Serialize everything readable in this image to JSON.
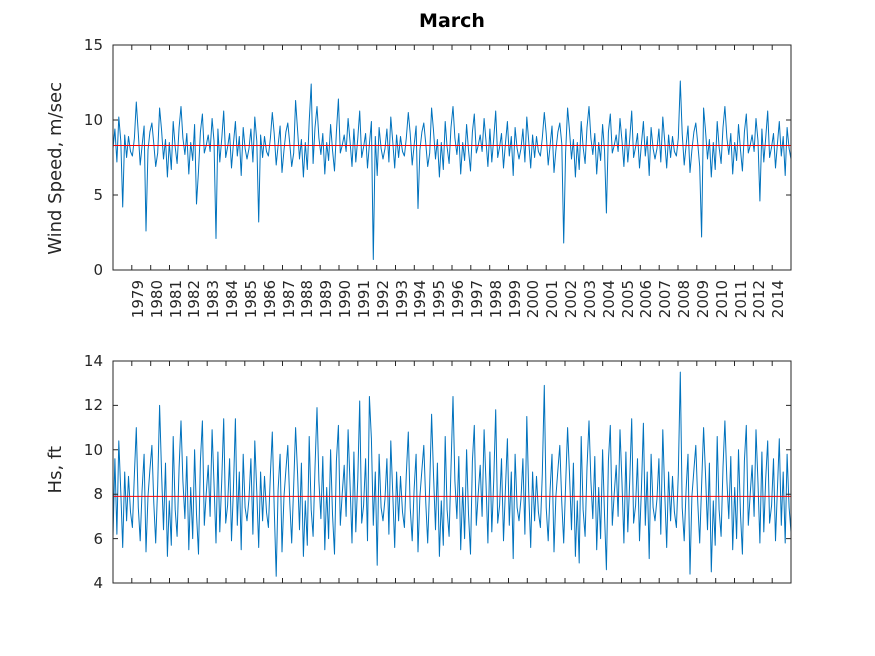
{
  "title": "March",
  "colors": {
    "series": "#0072BD",
    "mean_line": "#FF0000",
    "axis": "#262626",
    "background": "#FFFFFF",
    "title_text": "#000000"
  },
  "chart_data": [
    {
      "type": "line",
      "title": "March",
      "ylabel": "Wind Speed, m/sec",
      "ylim": [
        0,
        15
      ],
      "yticks": [
        0,
        5,
        10,
        15
      ],
      "grid": false,
      "legend": "none",
      "x_tick_labels": [
        "1979",
        "1980",
        "1981",
        "1982",
        "1983",
        "1984",
        "1985",
        "1986",
        "1987",
        "1988",
        "1989",
        "1990",
        "1991",
        "1992",
        "1993",
        "1994",
        "1995",
        "1996",
        "1997",
        "1998",
        "1999",
        "2000",
        "2001",
        "2002",
        "2003",
        "2004",
        "2005",
        "2006",
        "2007",
        "2008",
        "2009",
        "2010",
        "2011",
        "2012",
        "2014"
      ],
      "mean_line_value": 8.3,
      "values": [
        8.1,
        9.4,
        7.2,
        10.2,
        8.6,
        4.2,
        9.0,
        7.5,
        8.9,
        7.9,
        7.6,
        8.8,
        11.2,
        9.1,
        7.0,
        8.3,
        9.6,
        2.6,
        8.0,
        9.2,
        9.8,
        8.4,
        6.9,
        7.8,
        10.8,
        9.3,
        7.4,
        8.7,
        6.2,
        8.5,
        6.7,
        9.9,
        8.2,
        7.1,
        9.5,
        10.9,
        8.8,
        7.7,
        9.1,
        6.4,
        8.5,
        7.3,
        9.7,
        4.4,
        6.6,
        9.2,
        10.4,
        7.8,
        8.3,
        9.0,
        7.9,
        10.1,
        8.6,
        2.1,
        9.4,
        7.2,
        8.8,
        10.6,
        7.5,
        8.2,
        9.1,
        6.8,
        8.4,
        9.9,
        7.6,
        8.9,
        6.3,
        9.5,
        8.1,
        7.4,
        8.1,
        9.4,
        7.2,
        10.2,
        8.6,
        3.2,
        9.0,
        7.5,
        8.9,
        7.9,
        7.6,
        8.8,
        10.5,
        9.1,
        7.0,
        8.3,
        9.6,
        6.5,
        8.0,
        9.2,
        9.8,
        8.4,
        6.9,
        7.8,
        11.3,
        9.3,
        7.4,
        8.7,
        6.2,
        8.5,
        6.7,
        9.9,
        12.4,
        7.1,
        9.5,
        10.9,
        8.8,
        7.7,
        9.1,
        6.4,
        8.5,
        7.3,
        9.7,
        8.0,
        6.6,
        9.2,
        11.4,
        7.8,
        8.3,
        9.0,
        7.9,
        10.1,
        8.6,
        6.9,
        9.4,
        7.2,
        8.8,
        10.6,
        7.5,
        8.2,
        9.1,
        6.8,
        8.4,
        9.9,
        0.7,
        8.9,
        6.3,
        9.5,
        8.1,
        7.4,
        8.1,
        9.4,
        7.2,
        10.2,
        8.6,
        6.8,
        9.0,
        7.5,
        8.9,
        7.9,
        7.6,
        8.8,
        10.5,
        9.1,
        7.0,
        8.3,
        9.6,
        4.1,
        8.0,
        9.2,
        9.8,
        8.4,
        6.9,
        7.8,
        10.8,
        9.3,
        7.4,
        8.7,
        6.2,
        8.5,
        6.7,
        9.9,
        8.2,
        7.1,
        9.5,
        10.9,
        8.8,
        7.7,
        9.1,
        6.4,
        8.5,
        7.3,
        9.7,
        8.0,
        6.6,
        9.2,
        10.4,
        7.8,
        8.3,
        9.0,
        7.9,
        10.1,
        8.6,
        6.9,
        9.4,
        7.2,
        8.8,
        10.6,
        7.5,
        8.2,
        9.1,
        6.8,
        8.4,
        9.9,
        7.6,
        8.9,
        6.3,
        9.5,
        8.1,
        7.4,
        8.1,
        9.4,
        7.2,
        10.2,
        8.6,
        6.8,
        9.0,
        7.5,
        8.9,
        7.9,
        7.6,
        8.8,
        10.5,
        9.1,
        7.0,
        8.3,
        9.6,
        6.5,
        8.0,
        9.2,
        9.8,
        8.4,
        1.8,
        7.8,
        10.8,
        9.3,
        7.4,
        8.7,
        6.2,
        8.5,
        6.7,
        9.9,
        8.2,
        7.1,
        9.5,
        10.9,
        8.8,
        7.7,
        9.1,
        6.4,
        8.5,
        7.3,
        9.7,
        8.0,
        3.8,
        9.2,
        10.4,
        7.8,
        8.3,
        9.0,
        7.9,
        10.1,
        8.6,
        6.9,
        9.4,
        7.2,
        8.8,
        10.6,
        7.5,
        8.2,
        9.1,
        6.8,
        8.4,
        9.9,
        7.6,
        8.9,
        6.3,
        9.5,
        8.1,
        7.4,
        8.1,
        9.4,
        7.2,
        10.2,
        8.6,
        6.8,
        9.0,
        7.5,
        8.9,
        7.9,
        7.6,
        8.8,
        12.6,
        9.1,
        7.0,
        8.3,
        9.6,
        6.5,
        8.0,
        9.2,
        9.8,
        8.4,
        6.9,
        2.2,
        10.8,
        9.3,
        7.4,
        8.7,
        6.2,
        8.5,
        6.7,
        9.9,
        8.2,
        7.1,
        9.5,
        10.9,
        8.8,
        7.7,
        9.1,
        6.4,
        8.5,
        7.3,
        9.7,
        8.0,
        6.6,
        9.2,
        10.4,
        7.8,
        8.3,
        9.0,
        7.9,
        10.1,
        8.6,
        4.6,
        9.4,
        7.2,
        8.8,
        10.6,
        7.5,
        8.2,
        9.1,
        6.8,
        8.4,
        9.9,
        7.6,
        8.9,
        6.3,
        9.5,
        8.1,
        7.4
      ]
    },
    {
      "type": "line",
      "title": "",
      "ylabel": "Hs, ft",
      "ylim": [
        4,
        14
      ],
      "yticks": [
        4,
        6,
        8,
        10,
        12,
        14
      ],
      "grid": false,
      "legend": "none",
      "x_tick_labels": [],
      "mean_line_value": 7.9,
      "values": [
        6.1,
        9.6,
        6.2,
        10.4,
        8.1,
        5.6,
        9.0,
        6.8,
        8.8,
        7.2,
        6.5,
        8.9,
        11.0,
        7.4,
        5.9,
        8.2,
        9.8,
        5.4,
        7.9,
        9.1,
        10.2,
        7.6,
        5.8,
        8.4,
        12.0,
        8.9,
        6.4,
        9.4,
        5.2,
        7.7,
        5.7,
        10.6,
        7.3,
        6.1,
        9.2,
        11.3,
        8.6,
        6.9,
        9.7,
        5.5,
        8.3,
        6.0,
        10.0,
        7.1,
        5.3,
        9.5,
        11.3,
        6.6,
        8.0,
        9.3,
        7.0,
        10.9,
        8.5,
        5.8,
        9.9,
        6.3,
        8.7,
        11.4,
        6.7,
        7.5,
        9.6,
        5.9,
        8.2,
        11.4,
        6.6,
        9.0,
        5.5,
        9.8,
        7.4,
        6.8,
        7.8,
        9.6,
        6.2,
        10.4,
        8.1,
        5.6,
        9.0,
        6.8,
        8.8,
        7.2,
        6.5,
        8.9,
        10.8,
        7.4,
        4.3,
        8.2,
        9.8,
        5.4,
        7.9,
        9.1,
        10.2,
        7.6,
        5.8,
        8.4,
        11.0,
        8.9,
        6.4,
        9.4,
        5.2,
        7.7,
        5.7,
        10.6,
        7.3,
        6.1,
        9.2,
        11.9,
        8.6,
        6.9,
        9.7,
        5.5,
        8.3,
        6.0,
        10.0,
        7.1,
        5.3,
        9.5,
        11.1,
        6.6,
        8.0,
        9.3,
        7.0,
        10.9,
        8.5,
        5.8,
        9.9,
        6.3,
        8.7,
        12.2,
        6.7,
        7.5,
        9.6,
        5.9,
        12.4,
        10.5,
        6.6,
        9.0,
        4.8,
        9.8,
        7.4,
        6.8,
        7.8,
        9.6,
        6.2,
        10.4,
        8.1,
        5.6,
        9.0,
        6.8,
        8.8,
        7.2,
        6.5,
        8.9,
        10.8,
        7.4,
        5.9,
        8.2,
        9.8,
        5.4,
        7.9,
        9.1,
        10.2,
        7.6,
        5.8,
        8.4,
        11.6,
        8.9,
        6.4,
        9.4,
        5.2,
        7.7,
        5.7,
        10.6,
        7.3,
        6.1,
        9.2,
        12.4,
        8.6,
        6.9,
        9.7,
        5.5,
        8.3,
        6.0,
        10.0,
        7.1,
        5.3,
        9.5,
        11.1,
        6.6,
        8.0,
        9.3,
        7.0,
        10.9,
        8.5,
        5.8,
        9.9,
        6.3,
        8.7,
        11.8,
        6.7,
        7.5,
        9.6,
        5.9,
        8.2,
        10.5,
        6.6,
        9.0,
        5.1,
        9.8,
        7.4,
        6.8,
        7.8,
        9.6,
        6.2,
        11.5,
        8.1,
        5.6,
        9.0,
        6.8,
        8.8,
        7.2,
        6.5,
        8.9,
        12.9,
        7.4,
        5.9,
        8.2,
        9.8,
        5.4,
        7.9,
        9.1,
        10.2,
        7.6,
        5.8,
        8.4,
        11.0,
        8.9,
        6.4,
        9.4,
        5.2,
        7.7,
        4.9,
        10.6,
        7.3,
        6.1,
        9.2,
        11.3,
        8.6,
        6.9,
        9.7,
        5.5,
        8.3,
        6.0,
        10.0,
        7.1,
        4.6,
        9.5,
        11.1,
        6.6,
        8.0,
        9.3,
        7.0,
        10.9,
        8.5,
        5.8,
        9.9,
        6.3,
        8.7,
        11.4,
        6.7,
        7.5,
        9.6,
        5.9,
        8.2,
        11.2,
        6.6,
        9.0,
        5.1,
        9.8,
        7.4,
        6.8,
        7.8,
        9.6,
        6.2,
        10.9,
        8.1,
        5.6,
        9.0,
        6.8,
        8.8,
        7.2,
        6.5,
        8.9,
        13.5,
        7.4,
        5.9,
        8.2,
        9.8,
        4.4,
        7.9,
        9.1,
        10.2,
        7.6,
        5.8,
        8.4,
        11.0,
        8.9,
        6.4,
        9.4,
        4.5,
        7.7,
        5.7,
        10.6,
        7.3,
        6.1,
        9.2,
        11.3,
        8.6,
        6.9,
        9.7,
        5.5,
        8.3,
        6.0,
        10.0,
        7.1,
        5.3,
        9.5,
        11.1,
        6.6,
        8.0,
        9.3,
        7.0,
        10.9,
        8.5,
        5.8,
        9.9,
        6.3,
        8.7,
        10.4,
        6.7,
        7.5,
        9.6,
        5.9,
        8.2,
        10.5,
        6.6,
        9.0,
        5.8,
        9.8,
        7.4,
        6.3
      ]
    }
  ]
}
